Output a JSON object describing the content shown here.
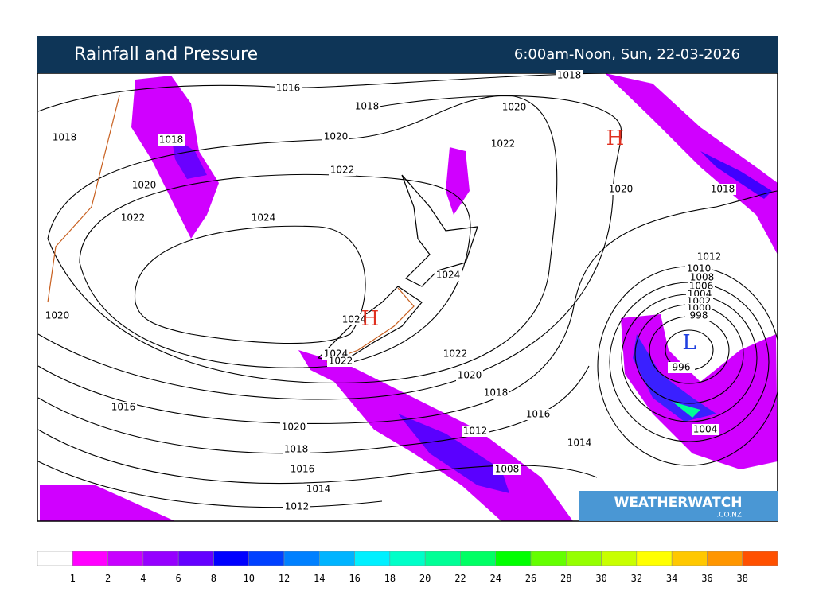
{
  "header": {
    "title": "Rainfall and Pressure",
    "subtitle": "6:00am-Noon, Sun, 22-03-2026"
  },
  "map": {
    "isobar_labels": [
      "1018",
      "1016",
      "1018",
      "1020",
      "1018",
      "1018",
      "1020",
      "1022",
      "1020",
      "1022",
      "1020",
      "1018",
      "1022",
      "1024",
      "1012",
      "1010",
      "1008",
      "1006",
      "1004",
      "1002",
      "1000",
      "998",
      "1024",
      "1020",
      "1024",
      "1024",
      "1022",
      "1022",
      "996",
      "1020",
      "1018",
      "1016",
      "1016",
      "1020",
      "1004",
      "1012",
      "1018",
      "1014",
      "1016",
      "1008",
      "1014",
      "1012"
    ],
    "high_marker": "H",
    "low_marker": "L",
    "high_color": "#e03020",
    "low_color": "#2040e0"
  },
  "logo": {
    "name": "WEATHERWATCH",
    "domain": ".CO.NZ"
  },
  "legend": {
    "labels": [
      1,
      2,
      4,
      6,
      8,
      10,
      12,
      14,
      16,
      18,
      20,
      22,
      24,
      26,
      28,
      30,
      32,
      34,
      36,
      38
    ],
    "colors": [
      "#ffffff",
      "#ff00ff",
      "#c800ff",
      "#9600ff",
      "#6400ff",
      "#0000ff",
      "#0040ff",
      "#0080ff",
      "#00b4ff",
      "#00f0ff",
      "#00ffc8",
      "#00ff96",
      "#00ff64",
      "#00ff00",
      "#64ff00",
      "#96ff00",
      "#c8ff00",
      "#ffff00",
      "#ffc800",
      "#ff9600",
      "#ff5000"
    ]
  }
}
